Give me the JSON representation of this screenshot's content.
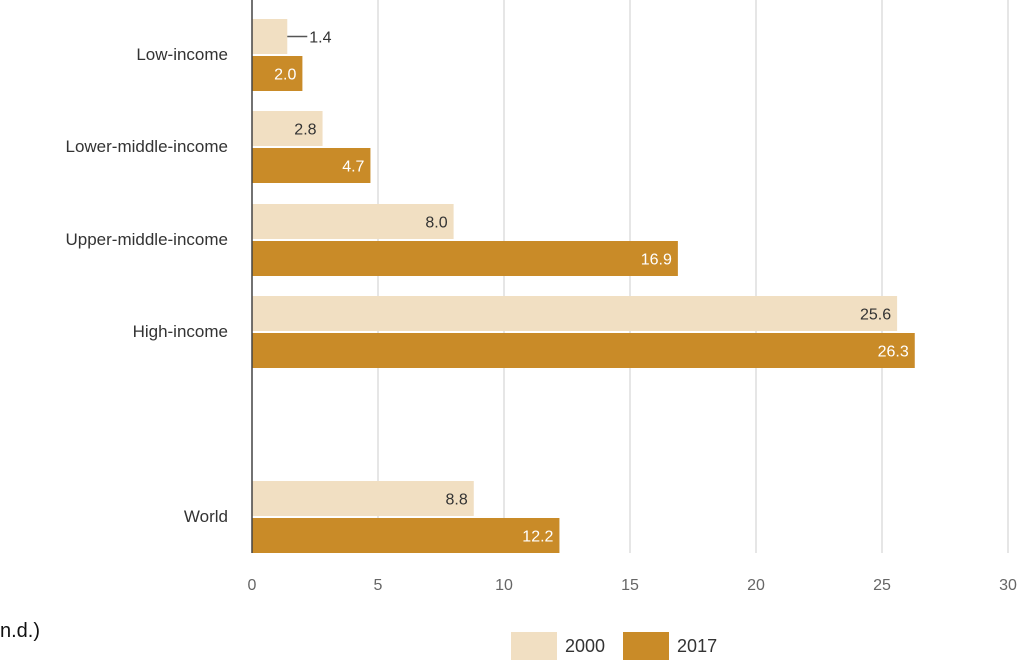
{
  "footnote": "n.d.)",
  "colors": {
    "series_2000": "#f1dfc2",
    "series_2017": "#c98b28",
    "grid": "#dddddd",
    "axis": "#444444"
  },
  "chart_data": {
    "type": "bar",
    "orientation": "horizontal",
    "categories": [
      "Low-income",
      "Lower-middle-income",
      "Upper-middle-income",
      "High-income",
      "World"
    ],
    "series": [
      {
        "name": "2000",
        "values": [
          1.4,
          2.8,
          8.0,
          25.6,
          8.8
        ],
        "labels": [
          "1.4",
          "2.8",
          "8.0",
          "25.6",
          "8.8"
        ]
      },
      {
        "name": "2017",
        "values": [
          2.0,
          4.7,
          16.9,
          26.3,
          12.2
        ],
        "labels": [
          "2.0",
          "4.7",
          "16.9",
          "26.3",
          "12.2"
        ]
      }
    ],
    "xlim": [
      0,
      30
    ],
    "xticks": [
      "0",
      "5",
      "10",
      "15",
      "20",
      "25",
      "30"
    ],
    "grid": true,
    "legend_position": "bottom"
  }
}
